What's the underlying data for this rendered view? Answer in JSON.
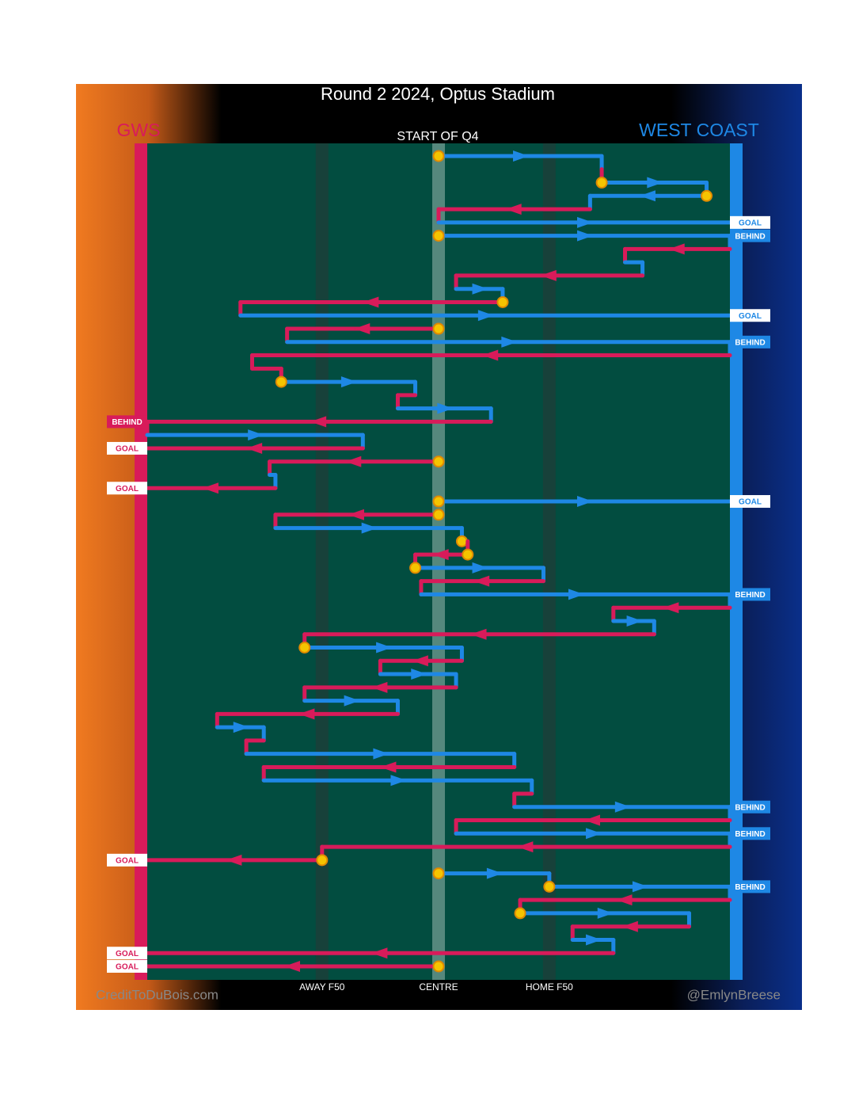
{
  "chart_data": {
    "type": "possession-chain",
    "title": "Round 2 2024, Optus Stadium",
    "subtitle": "START OF Q4",
    "teams": [
      {
        "name": "GWS",
        "color": "#d81b5a"
      },
      {
        "name": "WEST COAST",
        "color": "#1e88e5"
      }
    ],
    "xlim": [
      0,
      100
    ],
    "xticks": [
      {
        "value": 30,
        "label": "AWAY F50"
      },
      {
        "value": 50,
        "label": "CENTRE"
      },
      {
        "value": 69,
        "label": "HOME F50"
      }
    ],
    "possessions": [
      {
        "team": "WEST COAST",
        "from": 50,
        "to": 78,
        "stoppage": true
      },
      {
        "team": "GWS",
        "from": 78,
        "to": 78,
        "stoppage": false
      },
      {
        "team": "WEST COAST",
        "from": 78,
        "to": 96,
        "stoppage": true
      },
      {
        "team": "WEST COAST",
        "from": 96,
        "to": 76,
        "stoppage": true
      },
      {
        "team": "GWS",
        "from": 76,
        "to": 50,
        "stoppage": false
      },
      {
        "team": "WEST COAST",
        "from": 50,
        "to": 100,
        "stoppage": false,
        "result": "GOAL"
      },
      {
        "team": "WEST COAST",
        "from": 50,
        "to": 100,
        "stoppage": true,
        "result": "BEHIND"
      },
      {
        "team": "GWS",
        "from": 100,
        "to": 82,
        "stoppage": false
      },
      {
        "team": "WEST COAST",
        "from": 82,
        "to": 85,
        "stoppage": false
      },
      {
        "team": "GWS",
        "from": 85,
        "to": 53,
        "stoppage": false
      },
      {
        "team": "WEST COAST",
        "from": 53,
        "to": 61,
        "stoppage": false
      },
      {
        "team": "GWS",
        "from": 61,
        "to": 16,
        "stoppage": true
      },
      {
        "team": "WEST COAST",
        "from": 16,
        "to": 100,
        "stoppage": false,
        "result": "GOAL"
      },
      {
        "team": "GWS",
        "from": 50,
        "to": 24,
        "stoppage": true
      },
      {
        "team": "WEST COAST",
        "from": 24,
        "to": 100,
        "stoppage": false,
        "result": "BEHIND"
      },
      {
        "team": "GWS",
        "from": 100,
        "to": 18,
        "stoppage": false
      },
      {
        "team": "GWS",
        "from": 18,
        "to": 23,
        "stoppage": false
      },
      {
        "team": "WEST COAST",
        "from": 23,
        "to": 46,
        "stoppage": true
      },
      {
        "team": "GWS",
        "from": 46,
        "to": 43,
        "stoppage": false
      },
      {
        "team": "WEST COAST",
        "from": 43,
        "to": 59,
        "stoppage": false
      },
      {
        "team": "GWS",
        "from": 59,
        "to": 0,
        "stoppage": false,
        "result": "BEHIND"
      },
      {
        "team": "WEST COAST",
        "from": 0,
        "to": 37,
        "stoppage": false
      },
      {
        "team": "GWS",
        "from": 37,
        "to": 0,
        "stoppage": false,
        "result": "GOAL"
      },
      {
        "team": "GWS",
        "from": 50,
        "to": 21,
        "stoppage": true
      },
      {
        "team": "WEST COAST",
        "from": 21,
        "to": 22,
        "stoppage": false
      },
      {
        "team": "GWS",
        "from": 22,
        "to": 0,
        "stoppage": false,
        "result": "GOAL"
      },
      {
        "team": "WEST COAST",
        "from": 50,
        "to": 100,
        "stoppage": true,
        "result": "GOAL"
      },
      {
        "team": "GWS",
        "from": 50,
        "to": 22,
        "stoppage": true
      },
      {
        "team": "WEST COAST",
        "from": 22,
        "to": 54,
        "stoppage": false
      },
      {
        "team": "GWS",
        "from": 54,
        "to": 55,
        "stoppage": true
      },
      {
        "team": "GWS",
        "from": 55,
        "to": 46,
        "stoppage": true
      },
      {
        "team": "WEST COAST",
        "from": 46,
        "to": 68,
        "stoppage": true
      },
      {
        "team": "GWS",
        "from": 68,
        "to": 47,
        "stoppage": false
      },
      {
        "team": "WEST COAST",
        "from": 47,
        "to": 100,
        "stoppage": false,
        "result": "BEHIND"
      },
      {
        "team": "GWS",
        "from": 100,
        "to": 80,
        "stoppage": false
      },
      {
        "team": "WEST COAST",
        "from": 80,
        "to": 87,
        "stoppage": false
      },
      {
        "team": "GWS",
        "from": 87,
        "to": 27,
        "stoppage": false
      },
      {
        "team": "WEST COAST",
        "from": 27,
        "to": 54,
        "stoppage": true
      },
      {
        "team": "GWS",
        "from": 54,
        "to": 40,
        "stoppage": false
      },
      {
        "team": "WEST COAST",
        "from": 40,
        "to": 53,
        "stoppage": false
      },
      {
        "team": "GWS",
        "from": 53,
        "to": 27,
        "stoppage": false
      },
      {
        "team": "WEST COAST",
        "from": 27,
        "to": 43,
        "stoppage": false
      },
      {
        "team": "GWS",
        "from": 43,
        "to": 12,
        "stoppage": false
      },
      {
        "team": "WEST COAST",
        "from": 12,
        "to": 20,
        "stoppage": false
      },
      {
        "team": "GWS",
        "from": 20,
        "to": 17,
        "stoppage": false
      },
      {
        "team": "WEST COAST",
        "from": 17,
        "to": 63,
        "stoppage": false
      },
      {
        "team": "GWS",
        "from": 63,
        "to": 20,
        "stoppage": false
      },
      {
        "team": "WEST COAST",
        "from": 20,
        "to": 66,
        "stoppage": false
      },
      {
        "team": "GWS",
        "from": 66,
        "to": 63,
        "stoppage": false
      },
      {
        "team": "WEST COAST",
        "from": 63,
        "to": 100,
        "stoppage": false,
        "result": "BEHIND"
      },
      {
        "team": "GWS",
        "from": 100,
        "to": 53,
        "stoppage": false
      },
      {
        "team": "WEST COAST",
        "from": 53,
        "to": 100,
        "stoppage": false,
        "result": "BEHIND"
      },
      {
        "team": "GWS",
        "from": 100,
        "to": 30,
        "stoppage": false
      },
      {
        "team": "GWS",
        "from": 30,
        "to": 0,
        "stoppage": true,
        "result": "GOAL"
      },
      {
        "team": "WEST COAST",
        "from": 50,
        "to": 69,
        "stoppage": true
      },
      {
        "team": "WEST COAST",
        "from": 69,
        "to": 100,
        "stoppage": true,
        "result": "BEHIND"
      },
      {
        "team": "GWS",
        "from": 100,
        "to": 64,
        "stoppage": false
      },
      {
        "team": "WEST COAST",
        "from": 64,
        "to": 93,
        "stoppage": true
      },
      {
        "team": "GWS",
        "from": 93,
        "to": 73,
        "stoppage": false
      },
      {
        "team": "WEST COAST",
        "from": 73,
        "to": 80,
        "stoppage": false
      },
      {
        "team": "GWS",
        "from": 80,
        "to": 0,
        "stoppage": false,
        "result": "GOAL"
      },
      {
        "team": "GWS",
        "from": 50,
        "to": 0,
        "stoppage": true,
        "result": "GOAL"
      }
    ],
    "credits": [
      "CreditToDuBois.com",
      "@EmlynBreese"
    ]
  }
}
